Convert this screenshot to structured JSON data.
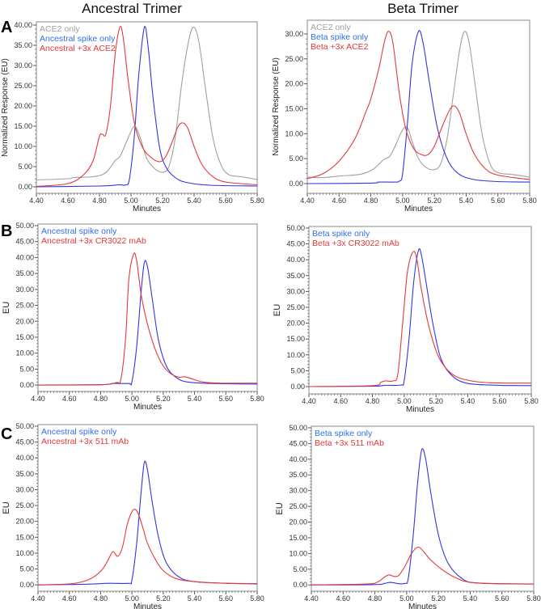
{
  "column_titles": [
    "Ancestral Trimer",
    "Beta Trimer"
  ],
  "row_labels": [
    "A",
    "B",
    "C"
  ],
  "colors": {
    "ace2_only": "#a0a0a0",
    "spike_only": "#3535e0",
    "complex": "#e5383b",
    "legend_blue": "#2f6fe8",
    "axis": "#555555"
  },
  "chart_data": [
    {
      "type": "line",
      "panel": "A",
      "column": "Ancestral Trimer",
      "xlabel": "Minutes",
      "ylabel": "Normalized Response (EU)",
      "xlim": [
        4.4,
        5.8
      ],
      "ylim": [
        -1.6,
        40.8
      ],
      "grid": false,
      "legend": "top-left",
      "xticks": [
        "4.40",
        "4.60",
        "4.80",
        "5.00",
        "5.20",
        "5.40",
        "5.60",
        "5.80"
      ],
      "yticks": [
        "0.00",
        "5.00",
        "10.00",
        "15.00",
        "20.00",
        "25.00",
        "30.00",
        "35.00",
        "40.00"
      ],
      "series": [
        {
          "name": "ACE2 only",
          "color": "#a0a0a0",
          "x": [
            4.4,
            4.6,
            4.64,
            4.76,
            4.84,
            4.9,
            4.93,
            4.97,
            5.01,
            5.03,
            5.06,
            5.1,
            5.15,
            5.2,
            5.24,
            5.28,
            5.32,
            5.36,
            5.395,
            5.43,
            5.47,
            5.52,
            5.57,
            5.62,
            5.7,
            5.8
          ],
          "y": [
            1.7,
            2.0,
            2.3,
            2.5,
            3.5,
            6.5,
            7.5,
            11,
            14.5,
            14.8,
            12,
            7,
            4.5,
            3.6,
            5,
            12,
            25,
            35,
            39.5,
            36,
            25,
            12,
            5.5,
            3,
            2.5,
            1.8
          ]
        },
        {
          "name": "Ancestral spike only",
          "color": "#3535e0",
          "x": [
            4.4,
            4.8,
            4.92,
            4.97,
            4.99,
            5.02,
            5.05,
            5.085,
            5.11,
            5.14,
            5.18,
            5.22,
            5.28,
            5.35,
            5.5,
            5.8
          ],
          "y": [
            0,
            0.2,
            0.5,
            0.5,
            2,
            12,
            28,
            39.5,
            34,
            22,
            10,
            5,
            2.3,
            1.1,
            0.4,
            0.2
          ]
        },
        {
          "name": "Ancestral +3x ACE2",
          "color": "#e5383b",
          "x": [
            4.4,
            4.6,
            4.7,
            4.76,
            4.8,
            4.82,
            4.84,
            4.87,
            4.9,
            4.93,
            4.95,
            4.98,
            5.02,
            5.07,
            5.12,
            5.18,
            5.22,
            5.26,
            5.3,
            5.33,
            5.36,
            5.4,
            5.45,
            5.52,
            5.6,
            5.8
          ],
          "y": [
            0.1,
            0.8,
            3,
            6.5,
            12.5,
            13,
            13,
            20,
            33,
            39.5,
            37,
            27,
            16,
            10,
            7.5,
            6.2,
            7.5,
            11,
            15,
            15.8,
            14.5,
            10,
            5.5,
            2.5,
            1.2,
            0.5
          ]
        }
      ]
    },
    {
      "type": "line",
      "panel": "A",
      "column": "Beta Trimer",
      "xlabel": "Minutes",
      "ylabel": "Normalized Response (EU)",
      "xlim": [
        4.4,
        5.8
      ],
      "ylim": [
        -1.95,
        32.75
      ],
      "grid": false,
      "legend": "top-left",
      "xticks": [
        "4.40",
        "4.60",
        "4.80",
        "5.00",
        "5.20",
        "5.40",
        "5.60",
        "5.80"
      ],
      "yticks": [
        "0.00",
        "5.00",
        "10.00",
        "15.00",
        "20.00",
        "25.00",
        "30.00"
      ],
      "series": [
        {
          "name": "ACE2 only",
          "color": "#a0a0a0",
          "x": [
            4.4,
            4.5,
            4.6,
            4.74,
            4.82,
            4.88,
            4.92,
            4.96,
            5.0,
            5.03,
            5.06,
            5.1,
            5.15,
            5.2,
            5.24,
            5.28,
            5.32,
            5.36,
            5.39,
            5.42,
            5.46,
            5.5,
            5.55,
            5.6,
            5.7,
            5.8
          ],
          "y": [
            1.3,
            1.2,
            1.5,
            1.9,
            3,
            4.8,
            5.5,
            8,
            10.8,
            11.2,
            8.5,
            5,
            3.2,
            2.8,
            4,
            9,
            18,
            27,
            30.5,
            28,
            19,
            10,
            4,
            2.2,
            1.8,
            1.3
          ]
        },
        {
          "name": "Beta spike only",
          "color": "#3535e0",
          "x": [
            4.4,
            4.8,
            4.85,
            4.95,
            4.98,
            5.0,
            5.03,
            5.06,
            5.1,
            5.13,
            5.17,
            5.22,
            5.28,
            5.35,
            5.45,
            5.6,
            5.8
          ],
          "y": [
            0,
            0.1,
            0.3,
            0.3,
            0.5,
            2,
            12,
            24,
            30.5,
            28,
            20,
            11,
            5,
            2,
            0.8,
            0.4,
            0.3
          ]
        },
        {
          "name": "Beta +3x ACE2",
          "color": "#e5383b",
          "x": [
            4.4,
            4.5,
            4.6,
            4.7,
            4.77,
            4.8,
            4.85,
            4.89,
            4.915,
            4.94,
            4.98,
            5.02,
            5.07,
            5.12,
            5.16,
            5.2,
            5.25,
            5.3,
            5.33,
            5.36,
            5.4,
            5.45,
            5.52,
            5.6,
            5.8
          ],
          "y": [
            1,
            2,
            4.5,
            9,
            14.5,
            17,
            23,
            29,
            30.5,
            28,
            18,
            11,
            7,
            5.8,
            5.8,
            7.5,
            11.5,
            15,
            15.5,
            14,
            10,
            6,
            3,
            1.7,
            0.8
          ]
        }
      ]
    },
    {
      "type": "line",
      "panel": "B",
      "column": "Ancestral Trimer",
      "xlabel": "Minutes",
      "ylabel": "EU",
      "xlim": [
        4.4,
        5.8
      ],
      "ylim": [
        -2,
        50.5
      ],
      "grid": false,
      "legend": "top-left",
      "xticks": [
        "4.40",
        "4.60",
        "4.80",
        "5.00",
        "5.20",
        "5.40",
        "5.60",
        "5.80"
      ],
      "yticks": [
        "0.00",
        "5.00",
        "10.00",
        "15.00",
        "20.00",
        "25.00",
        "30.00",
        "35.00",
        "40.00",
        "45.00",
        "50.00"
      ],
      "series": [
        {
          "name": "Ancestral spike only",
          "color": "#3535e0",
          "x": [
            4.4,
            4.8,
            4.88,
            4.98,
            5.0,
            5.03,
            5.06,
            5.08,
            5.1,
            5.13,
            5.17,
            5.22,
            5.28,
            5.35,
            5.5,
            5.8
          ],
          "y": [
            0,
            0.1,
            0.5,
            0.5,
            1,
            12,
            30,
            38.5,
            37,
            27,
            14,
            6,
            2.5,
            1,
            0.5,
            0.3
          ]
        },
        {
          "name": "Ancestral +3x CR3022 mAb",
          "color": "#e5383b",
          "x": [
            4.4,
            4.8,
            4.9,
            4.93,
            4.96,
            4.98,
            5.01,
            5.03,
            5.06,
            5.1,
            5.15,
            5.2,
            5.25,
            5.3,
            5.34,
            5.38,
            5.45,
            5.55,
            5.8
          ],
          "y": [
            0,
            0.1,
            0.8,
            2,
            15,
            33,
            41,
            39,
            28,
            19,
            11,
            6,
            3.5,
            2.5,
            2.6,
            2,
            1,
            0.6,
            0.6
          ]
        }
      ]
    },
    {
      "type": "line",
      "panel": "B",
      "column": "Beta Trimer",
      "xlabel": "Minutes",
      "ylabel": "EU",
      "xlim": [
        4.4,
        5.8
      ],
      "ylim": [
        -2.3,
        50.5
      ],
      "grid": false,
      "legend": "top-left",
      "xticks": [
        "4.40",
        "4.60",
        "4.80",
        "5.00",
        "5.20",
        "5.40",
        "5.60",
        "5.80"
      ],
      "yticks": [
        "0.00",
        "5.00",
        "10.00",
        "15.00",
        "20.00",
        "25.00",
        "30.00",
        "35.00",
        "40.00",
        "45.00",
        "50.00"
      ],
      "series": [
        {
          "name": "Beta spike only",
          "color": "#3535e0",
          "x": [
            4.4,
            4.8,
            4.88,
            4.98,
            5.0,
            5.03,
            5.06,
            5.09,
            5.11,
            5.14,
            5.18,
            5.23,
            5.3,
            5.4,
            5.6,
            5.8
          ],
          "y": [
            0,
            0.1,
            0.4,
            0.5,
            2,
            15,
            33,
            43,
            41,
            32,
            20,
            9,
            3.5,
            1,
            0.4,
            0.3
          ]
        },
        {
          "name": "Beta +3x CR3022 mAb",
          "color": "#e5383b",
          "x": [
            4.4,
            4.8,
            4.85,
            4.88,
            4.93,
            4.96,
            4.99,
            5.02,
            5.055,
            5.08,
            5.11,
            5.16,
            5.22,
            5.3,
            5.4,
            5.55,
            5.8
          ],
          "y": [
            0,
            0.3,
            1.3,
            1.8,
            1.8,
            4,
            20,
            36,
            42.5,
            40,
            30,
            18,
            9,
            4,
            2,
            1.2,
            1.1
          ]
        }
      ]
    },
    {
      "type": "line",
      "panel": "C",
      "column": "Ancestral Trimer",
      "xlabel": "Minutes",
      "ylabel": "EU",
      "xlim": [
        4.4,
        5.8
      ],
      "ylim": [
        -2,
        50.5
      ],
      "grid": false,
      "legend": "top-left",
      "xticks": [
        "4.40",
        "4.60",
        "4.80",
        "5.00",
        "5.20",
        "5.40",
        "5.60",
        "5.80"
      ],
      "yticks": [
        "0.00",
        "5.00",
        "10.00",
        "15.00",
        "20.00",
        "25.00",
        "30.00",
        "35.00",
        "40.00",
        "45.00",
        "50.00"
      ],
      "series": [
        {
          "name": "Ancestral spike only",
          "color": "#3535e0",
          "x": [
            4.4,
            4.7,
            4.85,
            4.98,
            5.0,
            5.03,
            5.06,
            5.08,
            5.1,
            5.13,
            5.17,
            5.22,
            5.3,
            5.4,
            5.6,
            5.8
          ],
          "y": [
            0,
            0.2,
            0.5,
            0.5,
            1.5,
            13,
            30,
            38.7,
            36,
            26,
            15,
            7,
            2.5,
            1,
            0.5,
            0.3
          ]
        },
        {
          "name": "Ancestral +3x 511 mAb",
          "color": "#e5383b",
          "x": [
            4.4,
            4.6,
            4.7,
            4.77,
            4.82,
            4.86,
            4.88,
            4.91,
            4.94,
            4.97,
            5.0,
            5.02,
            5.04,
            5.07,
            5.1,
            5.15,
            5.2,
            5.28,
            5.4,
            5.6,
            5.8
          ],
          "y": [
            0,
            0.3,
            1.2,
            3,
            5.5,
            9,
            10.5,
            9,
            12,
            19,
            23,
            23.8,
            22.5,
            18,
            13,
            8,
            4.5,
            2,
            1,
            0.5,
            0.4
          ]
        }
      ]
    },
    {
      "type": "line",
      "panel": "C",
      "column": "Beta Trimer",
      "xlabel": "Minutes",
      "ylabel": "EU",
      "xlim": [
        4.4,
        5.8
      ],
      "ylim": [
        -2,
        50.5
      ],
      "grid": false,
      "legend": "top-left",
      "xticks": [
        "4.40",
        "4.60",
        "4.80",
        "5.00",
        "5.20",
        "5.40",
        "5.60",
        "5.80"
      ],
      "yticks": [
        "0.00",
        "5.00",
        "10.00",
        "15.00",
        "20.00",
        "25.00",
        "30.00",
        "35.00",
        "40.00",
        "45.00",
        "50.00"
      ],
      "series": [
        {
          "name": "Beta spike only",
          "color": "#3535e0",
          "x": [
            4.4,
            4.8,
            4.86,
            4.9,
            4.95,
            4.99,
            5.01,
            5.04,
            5.07,
            5.095,
            5.12,
            5.15,
            5.2,
            5.26,
            5.35,
            5.45,
            5.8
          ],
          "y": [
            0,
            0.1,
            0.5,
            0.8,
            0.4,
            0.5,
            2,
            15,
            33,
            43,
            40,
            30,
            16,
            7,
            2,
            0.6,
            0.3
          ]
        },
        {
          "name": "Beta +3x 511 mAb",
          "color": "#e5383b",
          "x": [
            4.4,
            4.75,
            4.82,
            4.86,
            4.89,
            4.92,
            4.95,
            4.99,
            5.03,
            5.07,
            5.1,
            5.15,
            5.22,
            5.3,
            5.4,
            5.6,
            5.8
          ],
          "y": [
            0,
            0.3,
            1,
            2.5,
            3.2,
            2.7,
            3,
            6,
            10,
            12,
            11,
            8,
            5,
            2.5,
            0.8,
            0.4,
            0.3
          ]
        }
      ]
    }
  ]
}
